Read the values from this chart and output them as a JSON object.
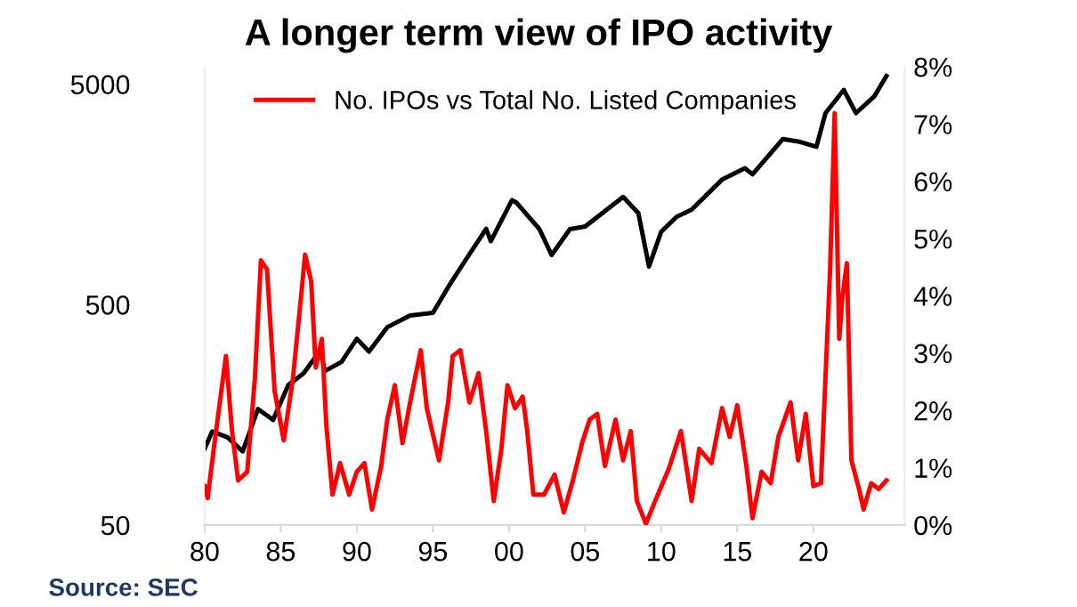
{
  "chart_data": {
    "type": "line",
    "title": "A longer term view of IPO activity",
    "annotations": [
      "Source: SEC"
    ],
    "xlim": [
      1980,
      2026
    ],
    "xticks": [
      {
        "value": 1980,
        "label": "80"
      },
      {
        "value": 1985,
        "label": "85"
      },
      {
        "value": 1990,
        "label": "90"
      },
      {
        "value": 1995,
        "label": "95"
      },
      {
        "value": 2000,
        "label": "00"
      },
      {
        "value": 2005,
        "label": "05"
      },
      {
        "value": 2010,
        "label": "10"
      },
      {
        "value": 2015,
        "label": "15"
      },
      {
        "value": 2020,
        "label": "20"
      }
    ],
    "ylim": [
      50,
      6000
    ],
    "yticks": [
      50,
      500,
      5000
    ],
    "log": "y",
    "y2lim": [
      0,
      8
    ],
    "y2ticks": [
      {
        "value": 0,
        "label": "0%"
      },
      {
        "value": 1,
        "label": "1%"
      },
      {
        "value": 2,
        "label": "2%"
      },
      {
        "value": 3,
        "label": "3%"
      },
      {
        "value": 4,
        "label": "4%"
      },
      {
        "value": 5,
        "label": "5%"
      },
      {
        "value": 6,
        "label": "6%"
      },
      {
        "value": 7,
        "label": "7%"
      },
      {
        "value": 8,
        "label": "8%"
      }
    ],
    "grid": false,
    "legend": "top left",
    "marker": "none",
    "line_style": "solid",
    "series": [
      {
        "color": "#000000",
        "x": [
          1980,
          1980.5,
          1981.5,
          1982.5,
          1983.5,
          1984.5,
          1985.5,
          1986.5,
          1987.6,
          1987.9,
          1989,
          1990,
          1990.8,
          1992,
          1993.5,
          1995,
          1996,
          1997,
          1998.5,
          1998.8,
          2000.2,
          2000.5,
          2002,
          2002.8,
          2004,
          2005,
          2007.5,
          2008.5,
          2009.2,
          2010,
          2011,
          2012,
          2014,
          2015.5,
          2016,
          2018,
          2019,
          2020.2,
          2020.8,
          2022,
          2022.8,
          2024,
          2024.8
        ],
        "values": [
          111,
          133,
          125,
          108,
          168,
          150,
          216,
          244,
          310,
          250,
          275,
          350,
          306,
          395,
          446,
          459,
          600,
          769,
          1104,
          970,
          1490,
          1450,
          1100,
          840,
          1100,
          1130,
          1540,
          1300,
          745,
          1070,
          1250,
          1350,
          1845,
          2080,
          1950,
          2820,
          2750,
          2600,
          3700,
          4710,
          3700,
          4400,
          5450
        ]
      },
      {
        "name": "No. IPOs vs Total No. Listed Companies",
        "color": "#ff0000",
        "axis": "y2",
        "x": [
          1980,
          1980.2,
          1980.6,
          1981.4,
          1981.8,
          1982.2,
          1982.8,
          1983.3,
          1983.7,
          1984.1,
          1984.6,
          1985.2,
          1985.8,
          1986.4,
          1986.6,
          1987,
          1987.3,
          1987.7,
          1988,
          1988.4,
          1988.9,
          1989.5,
          1990,
          1990.5,
          1991,
          1991.6,
          1992,
          1992.5,
          1993,
          1993.5,
          1994.2,
          1994.6,
          1995.4,
          1996,
          1996.3,
          1996.8,
          1997.4,
          1998,
          1998.5,
          1999,
          1999.5,
          1999.9,
          2000.4,
          2000.9,
          2001.2,
          2001.6,
          2002.3,
          2003,
          2003.6,
          2004.2,
          2004.8,
          2005.3,
          2005.8,
          2006.3,
          2007,
          2007.5,
          2008,
          2008.4,
          2009,
          2009.6,
          2010.5,
          2011.3,
          2012,
          2012.5,
          2013.3,
          2014,
          2014.5,
          2015,
          2015.6,
          2016,
          2016.6,
          2017.2,
          2017.7,
          2018.5,
          2019,
          2019.5,
          2020,
          2020.5,
          2021.1,
          2021.4,
          2021.7,
          2021.9,
          2022.2,
          2022.5,
          2023,
          2023.3,
          2023.8,
          2024.3,
          2024.8
        ],
        "values": [
          0.68,
          0.47,
          1.33,
          2.95,
          1.64,
          0.78,
          0.93,
          2.55,
          4.62,
          4.46,
          2.34,
          1.48,
          2.55,
          4.16,
          4.72,
          4.26,
          2.75,
          3.25,
          1.74,
          0.53,
          1.08,
          0.53,
          0.93,
          1.08,
          0.27,
          1.03,
          1.84,
          2.44,
          1.43,
          2.14,
          3.05,
          2.04,
          1.13,
          2.14,
          2.95,
          3.05,
          2.14,
          2.65,
          1.64,
          0.42,
          1.33,
          2.44,
          2.04,
          2.24,
          1.64,
          0.53,
          0.53,
          0.88,
          0.22,
          0.78,
          1.43,
          1.84,
          1.94,
          1.03,
          1.84,
          1.13,
          1.64,
          0.42,
          0.02,
          0.42,
          0.98,
          1.64,
          0.42,
          1.33,
          1.08,
          2.04,
          1.54,
          2.09,
          1.03,
          0.12,
          0.93,
          0.73,
          1.54,
          2.14,
          1.13,
          1.94,
          0.68,
          0.73,
          4.46,
          7.19,
          3.25,
          3.96,
          4.57,
          1.13,
          0.63,
          0.27,
          0.73,
          0.63,
          0.78
        ]
      }
    ]
  }
}
